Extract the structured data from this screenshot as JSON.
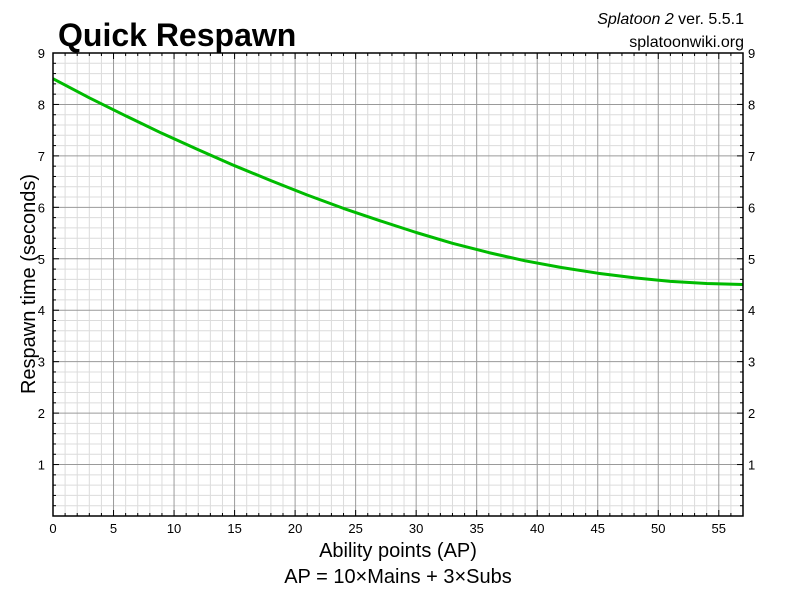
{
  "chart_data": {
    "type": "line",
    "title": "Quick Respawn",
    "credit_game": "Splatoon 2",
    "credit_version": " ver. 5.5.1",
    "credit_site": "splatoonwiki.org",
    "xlabel": "Ability points (AP)",
    "xlabel_sub": "AP = 10×Mains + 3×Subs",
    "ylabel": "Respawn time (seconds)",
    "xlim": [
      0,
      57
    ],
    "ylim": [
      0,
      9
    ],
    "x_ticks": [
      0,
      5,
      10,
      15,
      20,
      25,
      30,
      35,
      40,
      45,
      50,
      55
    ],
    "y_ticks": [
      1,
      2,
      3,
      4,
      5,
      6,
      7,
      8,
      9
    ],
    "x_minor_step": 1,
    "y_minor_step": 0.2,
    "grid": true,
    "line_color": "#00bb00",
    "series": [
      {
        "x": [
          0,
          3,
          6,
          9,
          12,
          15,
          18,
          21,
          24,
          27,
          30,
          33,
          36,
          39,
          42,
          45,
          48,
          51,
          54,
          57
        ],
        "y": [
          8.5,
          8.13,
          7.78,
          7.44,
          7.12,
          6.81,
          6.52,
          6.24,
          5.98,
          5.74,
          5.51,
          5.3,
          5.12,
          4.96,
          4.83,
          4.72,
          4.63,
          4.56,
          4.52,
          4.5
        ]
      }
    ]
  }
}
